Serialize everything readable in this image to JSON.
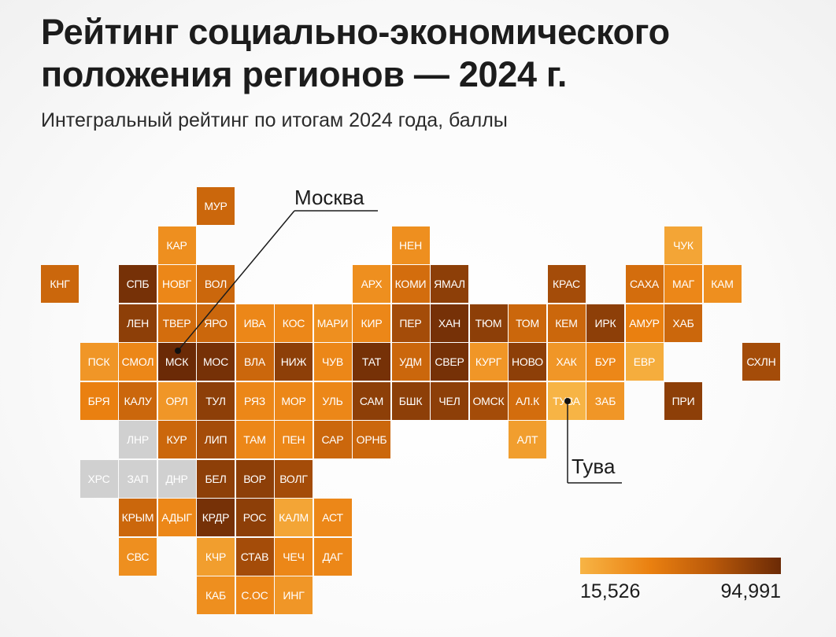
{
  "title": {
    "line1": "Рейтинг социально-экономического",
    "line2": "положения регионов — 2024 г."
  },
  "subtitle": "Интегральный рейтинг по итогам 2024 года, баллы",
  "callouts": {
    "moscow": "Москва",
    "tuva": "Тува"
  },
  "legend": {
    "min": "15,526",
    "max": "94,991",
    "color_low": "#f7b445",
    "color_high": "#6b2a06"
  },
  "tiles": [
    {
      "code": "МУР",
      "col": 5,
      "row": 0,
      "level": 0.55
    },
    {
      "code": "КАР",
      "col": 4,
      "row": 1,
      "level": 0.25
    },
    {
      "code": "НЕН",
      "col": 10,
      "row": 1,
      "level": 0.25
    },
    {
      "code": "ЧУК",
      "col": 17,
      "row": 1,
      "level": 0.1
    },
    {
      "code": "КНГ",
      "col": 1,
      "row": 2,
      "level": 0.55
    },
    {
      "code": "СПБ",
      "col": 3,
      "row": 2,
      "level": 0.95
    },
    {
      "code": "НОВГ",
      "col": 4,
      "row": 2,
      "level": 0.3
    },
    {
      "code": "ВОЛ",
      "col": 5,
      "row": 2,
      "level": 0.55
    },
    {
      "code": "АРХ",
      "col": 9,
      "row": 2,
      "level": 0.25
    },
    {
      "code": "КОМИ",
      "col": 10,
      "row": 2,
      "level": 0.5
    },
    {
      "code": "ЯМАЛ",
      "col": 11,
      "row": 2,
      "level": 0.85
    },
    {
      "code": "КРАС",
      "col": 14,
      "row": 2,
      "level": 0.75
    },
    {
      "code": "САХА",
      "col": 16,
      "row": 2,
      "level": 0.5
    },
    {
      "code": "МАГ",
      "col": 17,
      "row": 2,
      "level": 0.3
    },
    {
      "code": "КАМ",
      "col": 18,
      "row": 2,
      "level": 0.25
    },
    {
      "code": "ЛЕН",
      "col": 3,
      "row": 3,
      "level": 0.85
    },
    {
      "code": "ТВЕР",
      "col": 4,
      "row": 3,
      "level": 0.5
    },
    {
      "code": "ЯРО",
      "col": 5,
      "row": 3,
      "level": 0.55
    },
    {
      "code": "ИВА",
      "col": 6,
      "row": 3,
      "level": 0.3
    },
    {
      "code": "КОС",
      "col": 7,
      "row": 3,
      "level": 0.3
    },
    {
      "code": "МАРИ",
      "col": 8,
      "row": 3,
      "level": 0.25
    },
    {
      "code": "КИР",
      "col": 9,
      "row": 3,
      "level": 0.3
    },
    {
      "code": "ПЕР",
      "col": 10,
      "row": 3,
      "level": 0.75
    },
    {
      "code": "ХАН",
      "col": 11,
      "row": 3,
      "level": 0.95
    },
    {
      "code": "ТЮМ",
      "col": 12,
      "row": 3,
      "level": 0.85
    },
    {
      "code": "ТОМ",
      "col": 13,
      "row": 3,
      "level": 0.55
    },
    {
      "code": "КЕМ",
      "col": 14,
      "row": 3,
      "level": 0.55
    },
    {
      "code": "ИРК",
      "col": 15,
      "row": 3,
      "level": 0.85
    },
    {
      "code": "АМУР",
      "col": 16,
      "row": 3,
      "level": 0.35
    },
    {
      "code": "ХАБ",
      "col": 17,
      "row": 3,
      "level": 0.55
    },
    {
      "code": "ПСК",
      "col": 2,
      "row": 4,
      "level": 0.2
    },
    {
      "code": "СМОЛ",
      "col": 3,
      "row": 4,
      "level": 0.3
    },
    {
      "code": "МСК",
      "col": 4,
      "row": 4,
      "level": 1.0
    },
    {
      "code": "МОС",
      "col": 5,
      "row": 4,
      "level": 0.95
    },
    {
      "code": "ВЛА",
      "col": 6,
      "row": 4,
      "level": 0.55
    },
    {
      "code": "НИЖ",
      "col": 7,
      "row": 4,
      "level": 0.85
    },
    {
      "code": "ЧУВ",
      "col": 8,
      "row": 4,
      "level": 0.3
    },
    {
      "code": "ТАТ",
      "col": 9,
      "row": 4,
      "level": 0.95
    },
    {
      "code": "УДМ",
      "col": 10,
      "row": 4,
      "level": 0.55
    },
    {
      "code": "СВЕР",
      "col": 11,
      "row": 4,
      "level": 0.95
    },
    {
      "code": "КУРГ",
      "col": 12,
      "row": 4,
      "level": 0.2
    },
    {
      "code": "НОВО",
      "col": 13,
      "row": 4,
      "level": 0.85
    },
    {
      "code": "ХАК",
      "col": 14,
      "row": 4,
      "level": 0.2
    },
    {
      "code": "БУР",
      "col": 15,
      "row": 4,
      "level": 0.3
    },
    {
      "code": "ЕВР",
      "col": 16,
      "row": 4,
      "level": 0.05
    },
    {
      "code": "СХЛН",
      "col": 19,
      "row": 4,
      "level": 0.75
    },
    {
      "code": "БРЯ",
      "col": 2,
      "row": 5,
      "level": 0.35
    },
    {
      "code": "КАЛУ",
      "col": 3,
      "row": 5,
      "level": 0.55
    },
    {
      "code": "ОРЛ",
      "col": 4,
      "row": 5,
      "level": 0.2
    },
    {
      "code": "ТУЛ",
      "col": 5,
      "row": 5,
      "level": 0.85
    },
    {
      "code": "РЯЗ",
      "col": 6,
      "row": 5,
      "level": 0.3
    },
    {
      "code": "МОР",
      "col": 7,
      "row": 5,
      "level": 0.3
    },
    {
      "code": "УЛЬ",
      "col": 8,
      "row": 5,
      "level": 0.3
    },
    {
      "code": "САМ",
      "col": 9,
      "row": 5,
      "level": 0.85
    },
    {
      "code": "БШК",
      "col": 10,
      "row": 5,
      "level": 0.85
    },
    {
      "code": "ЧЕЛ",
      "col": 11,
      "row": 5,
      "level": 0.85
    },
    {
      "code": "ОМСК",
      "col": 12,
      "row": 5,
      "level": 0.75
    },
    {
      "code": "АЛ.К",
      "col": 13,
      "row": 5,
      "level": 0.5
    },
    {
      "code": "ТУВА",
      "col": 14,
      "row": 5,
      "level": 0.0
    },
    {
      "code": "ЗАБ",
      "col": 15,
      "row": 5,
      "level": 0.2
    },
    {
      "code": "ПРИ",
      "col": 17,
      "row": 5,
      "level": 0.85
    },
    {
      "code": "ЛНР",
      "col": 3,
      "row": 6,
      "level": null
    },
    {
      "code": "КУР",
      "col": 4,
      "row": 6,
      "level": 0.55
    },
    {
      "code": "ЛИП",
      "col": 5,
      "row": 6,
      "level": 0.75
    },
    {
      "code": "ТАМ",
      "col": 6,
      "row": 6,
      "level": 0.3
    },
    {
      "code": "ПЕН",
      "col": 7,
      "row": 6,
      "level": 0.3
    },
    {
      "code": "САР",
      "col": 8,
      "row": 6,
      "level": 0.55
    },
    {
      "code": "ОРНБ",
      "col": 9,
      "row": 6,
      "level": 0.55
    },
    {
      "code": "АЛТ",
      "col": 13,
      "row": 6,
      "level": 0.15
    },
    {
      "code": "ХРС",
      "col": 2,
      "row": 7,
      "level": null
    },
    {
      "code": "ЗАП",
      "col": 3,
      "row": 7,
      "level": null
    },
    {
      "code": "ДНР",
      "col": 4,
      "row": 7,
      "level": null
    },
    {
      "code": "БЕЛ",
      "col": 5,
      "row": 7,
      "level": 0.85
    },
    {
      "code": "ВОР",
      "col": 6,
      "row": 7,
      "level": 0.85
    },
    {
      "code": "ВОЛГ",
      "col": 7,
      "row": 7,
      "level": 0.75
    },
    {
      "code": "КРЫМ",
      "col": 3,
      "row": 8,
      "level": 0.55
    },
    {
      "code": "АДЫГ",
      "col": 4,
      "row": 8,
      "level": 0.3
    },
    {
      "code": "КРДР",
      "col": 5,
      "row": 8,
      "level": 0.95
    },
    {
      "code": "РОС",
      "col": 6,
      "row": 8,
      "level": 0.85
    },
    {
      "code": "КАЛМ",
      "col": 7,
      "row": 8,
      "level": 0.1
    },
    {
      "code": "АСТ",
      "col": 8,
      "row": 8,
      "level": 0.3
    },
    {
      "code": "СВС",
      "col": 3,
      "row": 9,
      "level": 0.25
    },
    {
      "code": "КЧР",
      "col": 5,
      "row": 9,
      "level": 0.15
    },
    {
      "code": "СТАВ",
      "col": 6,
      "row": 9,
      "level": 0.75
    },
    {
      "code": "ЧЕЧ",
      "col": 7,
      "row": 9,
      "level": 0.3
    },
    {
      "code": "ДАГ",
      "col": 8,
      "row": 9,
      "level": 0.3
    },
    {
      "code": "КАБ",
      "col": 5,
      "row": 10,
      "level": 0.25
    },
    {
      "code": "С.ОС",
      "col": 6,
      "row": 10,
      "level": 0.3
    },
    {
      "code": "ИНГ",
      "col": 7,
      "row": 10,
      "level": 0.2
    }
  ]
}
